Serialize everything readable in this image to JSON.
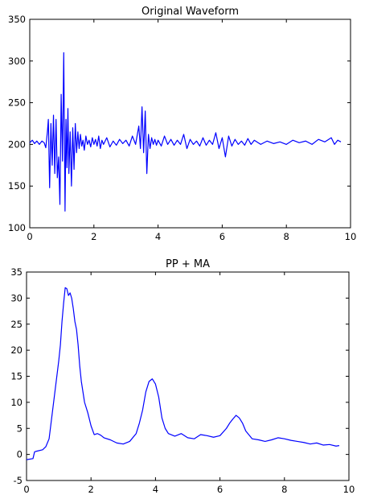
{
  "chart_data": [
    {
      "type": "line",
      "title": "Original Waveform",
      "xlabel": "",
      "ylabel": "",
      "xlim": [
        0,
        10
      ],
      "ylim": [
        100,
        350
      ],
      "xticks": [
        0,
        2,
        4,
        6,
        8,
        10
      ],
      "yticks": [
        100,
        150,
        200,
        250,
        300,
        350
      ],
      "grid": false,
      "legend": "none",
      "colors": {
        "line": "#0000ff",
        "axes": "#000000",
        "background": "#ffffff"
      },
      "series": [
        {
          "x": [
            0,
            0.08,
            0.15,
            0.22,
            0.3,
            0.38,
            0.45,
            0.5,
            0.55,
            0.58,
            0.62,
            0.66,
            0.7,
            0.74,
            0.78,
            0.82,
            0.86,
            0.9,
            0.94,
            0.98,
            1.02,
            1.06,
            1.1,
            1.13,
            1.16,
            1.19,
            1.22,
            1.26,
            1.3,
            1.34,
            1.38,
            1.42,
            1.46,
            1.5,
            1.54,
            1.58,
            1.62,
            1.66,
            1.7,
            1.75,
            1.8,
            1.85,
            1.9,
            1.95,
            2.0,
            2.05,
            2.1,
            2.15,
            2.2,
            2.25,
            2.3,
            2.4,
            2.5,
            2.6,
            2.7,
            2.8,
            2.9,
            3.0,
            3.1,
            3.2,
            3.3,
            3.4,
            3.45,
            3.5,
            3.55,
            3.6,
            3.65,
            3.7,
            3.75,
            3.8,
            3.85,
            3.9,
            3.95,
            4.0,
            4.1,
            4.2,
            4.3,
            4.4,
            4.5,
            4.6,
            4.7,
            4.8,
            4.9,
            5.0,
            5.1,
            5.2,
            5.3,
            5.4,
            5.5,
            5.6,
            5.7,
            5.8,
            5.9,
            6.0,
            6.1,
            6.2,
            6.3,
            6.4,
            6.5,
            6.6,
            6.7,
            6.8,
            6.9,
            7.0,
            7.2,
            7.4,
            7.6,
            7.8,
            8.0,
            8.2,
            8.4,
            8.6,
            8.8,
            9.0,
            9.2,
            9.4,
            9.5,
            9.6,
            9.7
          ],
          "y": [
            202,
            205,
            201,
            204,
            200,
            204,
            202,
            196,
            215,
            230,
            148,
            225,
            175,
            235,
            165,
            230,
            160,
            185,
            128,
            260,
            180,
            310,
            120,
            230,
            172,
            243,
            165,
            215,
            150,
            220,
            170,
            225,
            190,
            215,
            195,
            212,
            198,
            205,
            193,
            210,
            200,
            205,
            197,
            208,
            200,
            206,
            198,
            210,
            195,
            205,
            200,
            208,
            197,
            204,
            199,
            206,
            201,
            205,
            198,
            210,
            200,
            222,
            195,
            245,
            190,
            240,
            165,
            212,
            195,
            208,
            200,
            206,
            199,
            205,
            198,
            210,
            200,
            206,
            199,
            205,
            200,
            212,
            195,
            206,
            200,
            204,
            198,
            208,
            199,
            205,
            200,
            214,
            195,
            208,
            185,
            210,
            198,
            206,
            200,
            204,
            199,
            207,
            200,
            205,
            200,
            204,
            201,
            203,
            200,
            205,
            202,
            204,
            200,
            206,
            203,
            208,
            200,
            205,
            203
          ]
        }
      ]
    },
    {
      "type": "line",
      "title": "PP + MA",
      "xlabel": "",
      "ylabel": "",
      "xlim": [
        0,
        10
      ],
      "ylim": [
        -5,
        35
      ],
      "xticks": [
        0,
        2,
        4,
        6,
        8,
        10
      ],
      "yticks": [
        -5,
        0,
        5,
        10,
        15,
        20,
        25,
        30,
        35
      ],
      "grid": false,
      "legend": "none",
      "colors": {
        "line": "#0000ff",
        "axes": "#000000",
        "background": "#ffffff"
      },
      "series": [
        {
          "x": [
            0,
            0.2,
            0.25,
            0.3,
            0.5,
            0.6,
            0.7,
            0.8,
            0.9,
            1.0,
            1.05,
            1.1,
            1.15,
            1.2,
            1.25,
            1.3,
            1.35,
            1.4,
            1.45,
            1.5,
            1.55,
            1.6,
            1.65,
            1.7,
            1.8,
            1.9,
            2.0,
            2.1,
            2.2,
            2.3,
            2.4,
            2.6,
            2.8,
            3.0,
            3.2,
            3.4,
            3.5,
            3.6,
            3.7,
            3.8,
            3.9,
            4.0,
            4.1,
            4.2,
            4.3,
            4.4,
            4.6,
            4.8,
            5.0,
            5.2,
            5.4,
            5.6,
            5.8,
            6.0,
            6.2,
            6.3,
            6.4,
            6.5,
            6.6,
            6.7,
            6.8,
            7.0,
            7.2,
            7.4,
            7.6,
            7.8,
            8.0,
            8.2,
            8.4,
            8.6,
            8.8,
            9.0,
            9.2,
            9.4,
            9.6,
            9.7
          ],
          "y": [
            -1,
            -0.8,
            0.5,
            0.6,
            0.9,
            1.5,
            3.0,
            8.0,
            13.0,
            18.0,
            21.0,
            25.5,
            29.0,
            32.0,
            31.8,
            30.5,
            31.0,
            30.0,
            28.0,
            25.5,
            24.0,
            21.0,
            17.0,
            14.0,
            10.0,
            8.0,
            5.5,
            3.8,
            4.0,
            3.7,
            3.2,
            2.8,
            2.2,
            2.0,
            2.5,
            4.0,
            6.0,
            8.5,
            12.0,
            14.0,
            14.5,
            13.5,
            11.0,
            7.0,
            5.0,
            4.0,
            3.5,
            4.0,
            3.2,
            3.0,
            3.8,
            3.6,
            3.3,
            3.6,
            5.0,
            6.0,
            6.8,
            7.5,
            7.0,
            6.0,
            4.5,
            3.0,
            2.8,
            2.5,
            2.8,
            3.2,
            3.0,
            2.7,
            2.5,
            2.3,
            2.0,
            2.2,
            1.8,
            1.9,
            1.6,
            1.7
          ]
        }
      ]
    }
  ]
}
